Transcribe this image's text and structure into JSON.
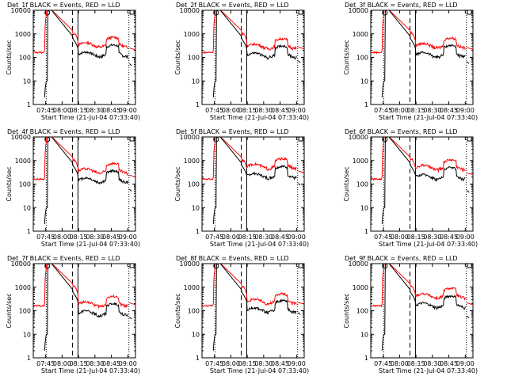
{
  "chart_data": {
    "type": "line",
    "log_y": true,
    "ylim": [
      1,
      10000
    ],
    "y_ticks": [
      1,
      10,
      100,
      1000,
      10000
    ],
    "y_tick_labels": [
      "1",
      "10",
      "100",
      "1000",
      "10000"
    ],
    "ylabel": "Counts/sec",
    "xlabel": "Start Time (21-Jul-04 07:33:40)",
    "x_tick_labels": [
      "07:45",
      "08:00",
      "08:15",
      "08:30",
      "08:45",
      "09:00"
    ],
    "x_tick_minutes": [
      45,
      60,
      75,
      90,
      105,
      120
    ],
    "xlim_minutes": [
      33.67,
      127
    ],
    "series_colors": {
      "events": "#000000",
      "lld": "#ff0000"
    },
    "panels": [
      {
        "title": "Det_1f BLACK = Events, RED = LLD",
        "red_plateau": 300,
        "black_plateau": 120,
        "red_tail": 210,
        "black_tail": 45
      },
      {
        "title": "Det_2f BLACK = Events, RED = LLD",
        "red_plateau": 260,
        "black_plateau": 110,
        "red_tail": 230,
        "black_tail": 60
      },
      {
        "title": "Det_3f BLACK = Events, RED = LLD",
        "red_plateau": 280,
        "black_plateau": 115,
        "red_tail": 220,
        "black_tail": 55
      },
      {
        "title": "Det_4f BLACK = Events, RED = LLD",
        "red_plateau": 320,
        "black_plateau": 130,
        "red_tail": 200,
        "black_tail": 50
      },
      {
        "title": "Det_5f BLACK = Events, RED = LLD",
        "red_plateau": 500,
        "black_plateau": 200,
        "red_tail": 300,
        "black_tail": 90
      },
      {
        "title": "Det_6f BLACK = Events, RED = LLD",
        "red_plateau": 450,
        "black_plateau": 180,
        "red_tail": 250,
        "black_tail": 45
      },
      {
        "title": "Det_7f BLACK = Events, RED = LLD",
        "red_plateau": 170,
        "black_plateau": 70,
        "red_tail": 180,
        "black_tail": 45
      },
      {
        "title": "Det_8f BLACK = Events, RED = LLD",
        "red_plateau": 220,
        "black_plateau": 95,
        "red_tail": 190,
        "black_tail": 70
      },
      {
        "title": "Det_9f BLACK = Events, RED = LLD",
        "red_plateau": 380,
        "black_plateau": 150,
        "red_tail": 180,
        "black_tail": 50
      }
    ]
  }
}
